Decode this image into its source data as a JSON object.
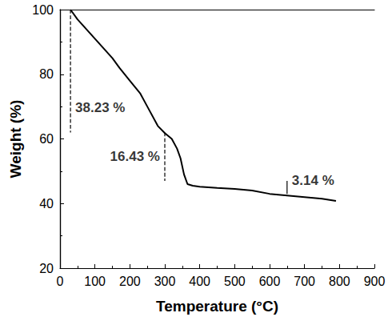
{
  "chart_data": {
    "type": "line",
    "x_label": "Temperature (°C)",
    "y_label": "Weight (%)",
    "color": "#000000",
    "x": [
      30,
      50,
      100,
      150,
      170,
      200,
      230,
      250,
      280,
      300,
      320,
      335,
      345,
      355,
      365,
      380,
      400,
      450,
      500,
      550,
      600,
      650,
      700,
      750,
      790
    ],
    "values": [
      100,
      97,
      91,
      85,
      82,
      78,
      74,
      70,
      64,
      61.8,
      60,
      57,
      54,
      49,
      46,
      45.5,
      45.2,
      44.8,
      44.5,
      44,
      43,
      42.5,
      42,
      41.5,
      40.8
    ],
    "xlim": [
      0,
      900
    ],
    "xticks": [
      0,
      100,
      200,
      300,
      400,
      500,
      600,
      700,
      800,
      900
    ],
    "ylim": [
      20,
      100
    ],
    "yticks": [
      20,
      40,
      60,
      80,
      100
    ],
    "grid": false,
    "annotations": [
      {
        "text": "38.23 %",
        "x": 30,
        "from": 100,
        "to": 62,
        "line_style": "dashed"
      },
      {
        "text": "16.43 %",
        "x": 300,
        "from": 62,
        "to": 47,
        "line_style": "dashed"
      },
      {
        "text": "3.14 %",
        "x": 650,
        "from": 47,
        "to": 43,
        "line_style": "solid"
      }
    ]
  }
}
